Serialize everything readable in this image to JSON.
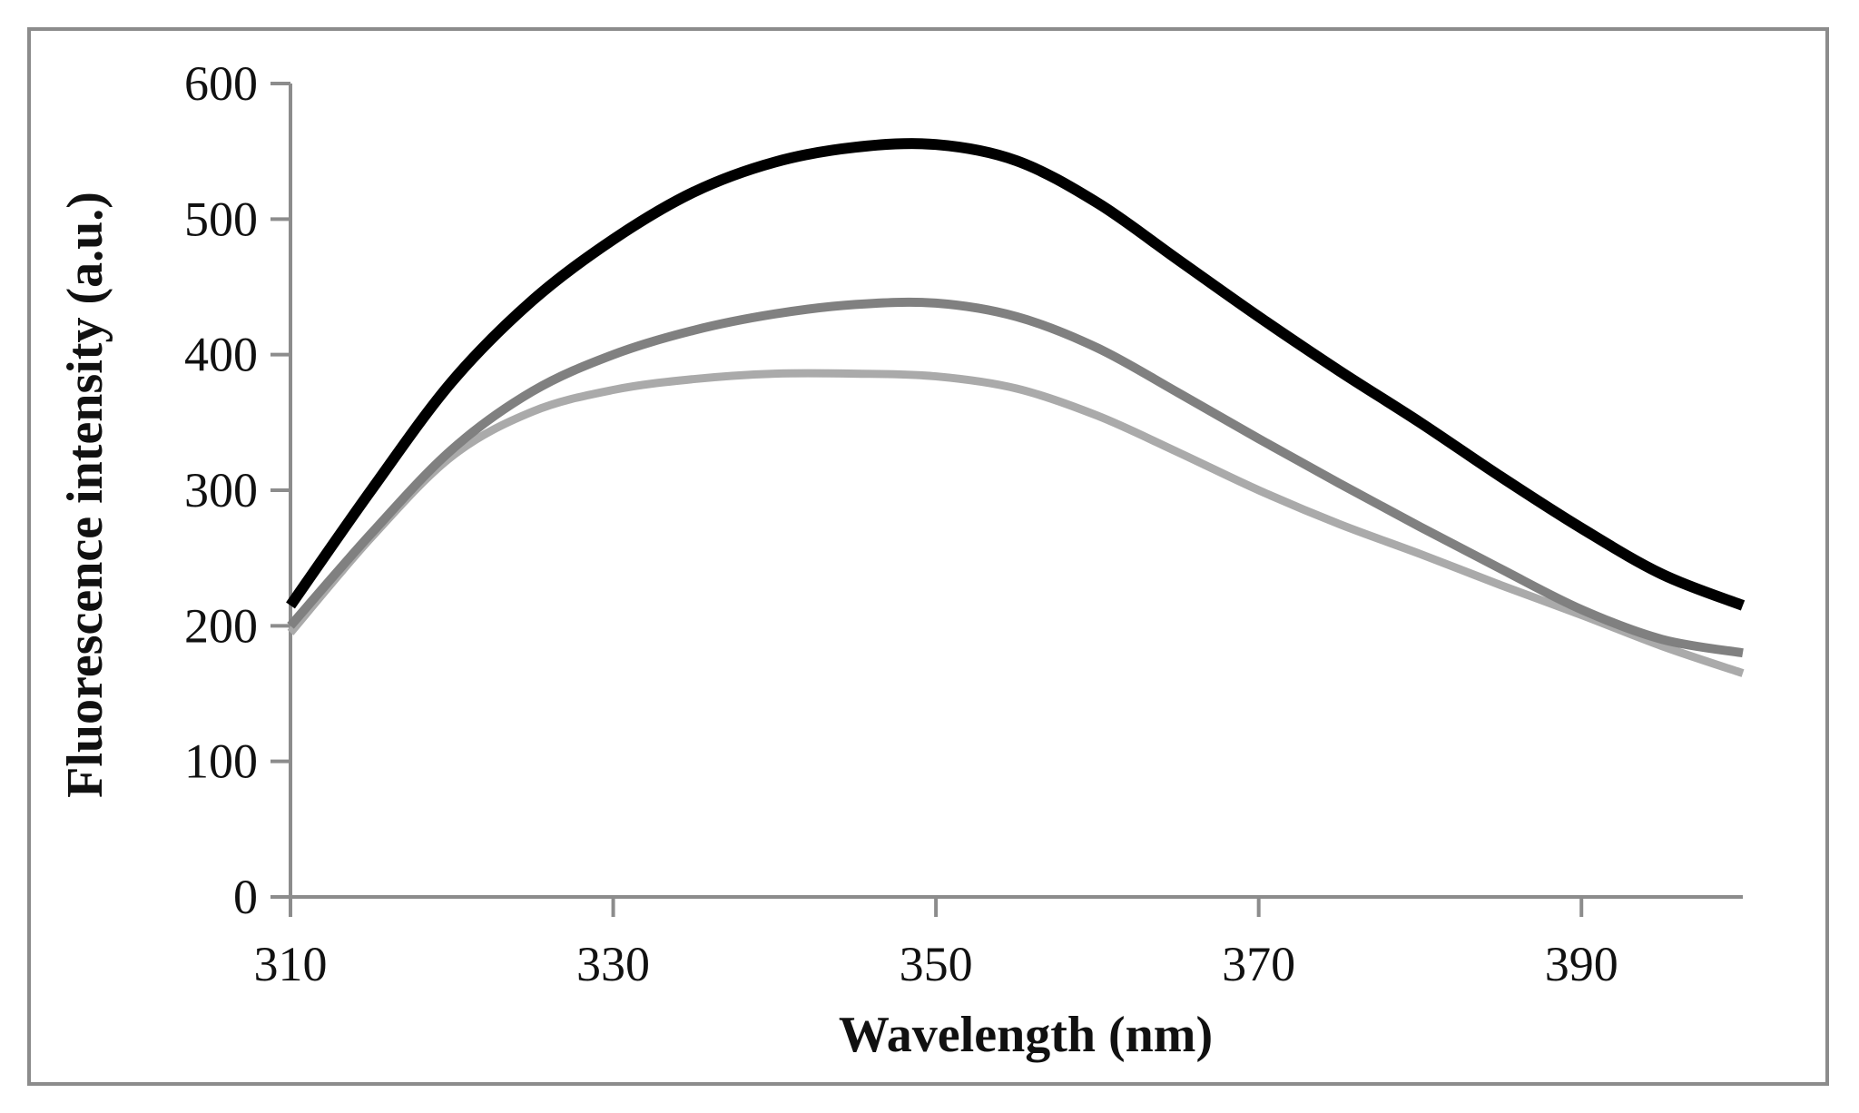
{
  "chart_data": {
    "type": "line",
    "title": "",
    "xlabel": "Wavelength (nm)",
    "ylabel": "Fluorescence intensity (a.u.)",
    "xlim": [
      310,
      400
    ],
    "ylim": [
      0,
      600
    ],
    "x_ticks": [
      310,
      330,
      350,
      370,
      390
    ],
    "y_ticks": [
      0,
      100,
      200,
      300,
      400,
      500,
      600
    ],
    "grid": false,
    "x": [
      310,
      315,
      320,
      325,
      330,
      335,
      340,
      345,
      350,
      355,
      360,
      365,
      370,
      375,
      380,
      385,
      390,
      395,
      400
    ],
    "series": [
      {
        "name": "series-black",
        "color": "#000000",
        "values": [
          215,
          300,
          380,
          440,
          485,
          520,
          542,
          553,
          555,
          543,
          512,
          470,
          428,
          388,
          350,
          310,
          272,
          238,
          215
        ]
      },
      {
        "name": "series-dark-gray",
        "color": "#808080",
        "values": [
          200,
          268,
          330,
          373,
          400,
          418,
          430,
          437,
          438,
          428,
          405,
          372,
          338,
          305,
          273,
          242,
          212,
          190,
          180
        ]
      },
      {
        "name": "series-light-gray",
        "color": "#aaaaaa",
        "values": [
          195,
          265,
          325,
          358,
          374,
          382,
          386,
          386,
          384,
          375,
          355,
          328,
          300,
          275,
          253,
          230,
          208,
          185,
          165
        ]
      }
    ]
  }
}
